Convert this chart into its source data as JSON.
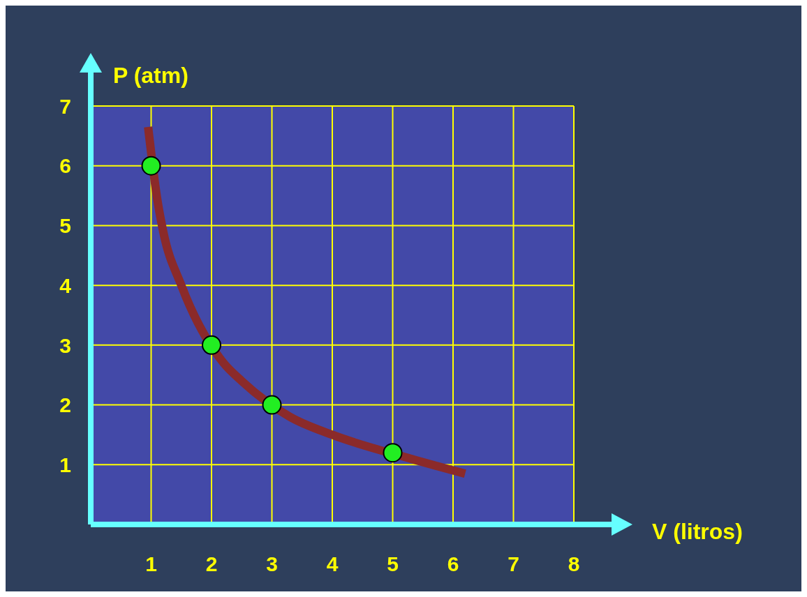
{
  "chart_data": {
    "type": "scatter",
    "xlabel": "V (litros)",
    "ylabel": "P (atm)",
    "xlim": [
      0,
      8
    ],
    "ylim": [
      0,
      7
    ],
    "xticks": [
      1,
      2,
      3,
      4,
      5,
      6,
      7,
      8
    ],
    "yticks": [
      1,
      2,
      3,
      4,
      5,
      6,
      7
    ],
    "grid": true,
    "series": [
      {
        "type": "line",
        "marker": "none",
        "color": "#8b2a2a",
        "x": [
          0.95,
          1.1,
          1.2,
          1.5,
          2.2,
          2.5,
          3.3,
          4,
          5.3,
          6.2
        ],
        "values": [
          6.65,
          5.45,
          4.9,
          4,
          2.7,
          2.4,
          1.8,
          1.5,
          1.1,
          0.85
        ]
      },
      {
        "marker": "circle",
        "color": "#22ee22",
        "x": [
          1,
          2,
          3,
          5
        ],
        "values": [
          6,
          3,
          2,
          1.2
        ]
      }
    ]
  }
}
